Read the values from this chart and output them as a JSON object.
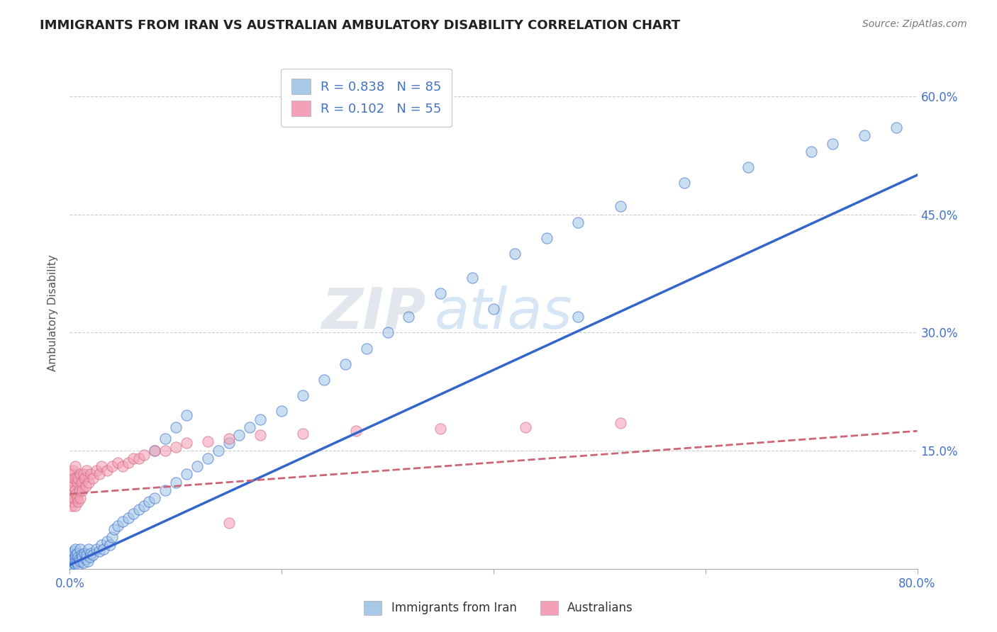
{
  "title": "IMMIGRANTS FROM IRAN VS AUSTRALIAN AMBULATORY DISABILITY CORRELATION CHART",
  "source": "Source: ZipAtlas.com",
  "ylabel": "Ambulatory Disability",
  "watermark": "ZIPatlas",
  "xlim": [
    0.0,
    0.8
  ],
  "ylim": [
    0.0,
    0.65
  ],
  "x_ticks": [
    0.0,
    0.2,
    0.4,
    0.6,
    0.8
  ],
  "x_tick_labels": [
    "0.0%",
    "",
    "",
    "",
    "80.0%"
  ],
  "y_ticks": [
    0.15,
    0.3,
    0.45,
    0.6
  ],
  "y_tick_labels": [
    "15.0%",
    "30.0%",
    "45.0%",
    "60.0%"
  ],
  "series1_color": "#a8c8e8",
  "series2_color": "#f4a0b8",
  "line1_color": "#3366cc",
  "line2_color": "#cc6677",
  "R1": 0.838,
  "N1": 85,
  "R2": 0.102,
  "N2": 55,
  "legend_label1": "Immigrants from Iran",
  "legend_label2": "Australians",
  "line1_x": [
    0.0,
    0.8
  ],
  "line1_y": [
    0.005,
    0.5
  ],
  "line2_x": [
    0.0,
    0.8
  ],
  "line2_y": [
    0.095,
    0.175
  ],
  "bg_color": "#ffffff",
  "grid_color": "#cccccc",
  "tick_color": "#4472c4",
  "title_color": "#222222",
  "s1_x": [
    0.001,
    0.001,
    0.002,
    0.002,
    0.002,
    0.003,
    0.003,
    0.003,
    0.004,
    0.004,
    0.004,
    0.005,
    0.005,
    0.005,
    0.006,
    0.006,
    0.007,
    0.007,
    0.008,
    0.008,
    0.009,
    0.01,
    0.01,
    0.011,
    0.012,
    0.013,
    0.014,
    0.015,
    0.016,
    0.017,
    0.018,
    0.019,
    0.02,
    0.022,
    0.025,
    0.028,
    0.03,
    0.032,
    0.035,
    0.038,
    0.04,
    0.042,
    0.045,
    0.05,
    0.055,
    0.06,
    0.065,
    0.07,
    0.075,
    0.08,
    0.09,
    0.1,
    0.11,
    0.12,
    0.13,
    0.14,
    0.15,
    0.16,
    0.17,
    0.18,
    0.2,
    0.22,
    0.24,
    0.26,
    0.28,
    0.3,
    0.32,
    0.35,
    0.38,
    0.42,
    0.45,
    0.48,
    0.52,
    0.58,
    0.64,
    0.7,
    0.72,
    0.75,
    0.78,
    0.08,
    0.09,
    0.1,
    0.11,
    0.4,
    0.48
  ],
  "s1_y": [
    0.008,
    0.012,
    0.006,
    0.015,
    0.02,
    0.005,
    0.01,
    0.018,
    0.008,
    0.012,
    0.022,
    0.006,
    0.015,
    0.025,
    0.01,
    0.018,
    0.008,
    0.02,
    0.005,
    0.015,
    0.012,
    0.01,
    0.025,
    0.018,
    0.015,
    0.008,
    0.02,
    0.012,
    0.018,
    0.01,
    0.025,
    0.015,
    0.02,
    0.018,
    0.025,
    0.022,
    0.03,
    0.025,
    0.035,
    0.03,
    0.04,
    0.05,
    0.055,
    0.06,
    0.065,
    0.07,
    0.075,
    0.08,
    0.085,
    0.09,
    0.1,
    0.11,
    0.12,
    0.13,
    0.14,
    0.15,
    0.16,
    0.17,
    0.18,
    0.19,
    0.2,
    0.22,
    0.24,
    0.26,
    0.28,
    0.3,
    0.32,
    0.35,
    0.37,
    0.4,
    0.42,
    0.44,
    0.46,
    0.49,
    0.51,
    0.53,
    0.54,
    0.55,
    0.56,
    0.15,
    0.165,
    0.18,
    0.195,
    0.33,
    0.32
  ],
  "s2_x": [
    0.001,
    0.001,
    0.002,
    0.002,
    0.002,
    0.003,
    0.003,
    0.003,
    0.004,
    0.004,
    0.005,
    0.005,
    0.005,
    0.006,
    0.006,
    0.007,
    0.007,
    0.008,
    0.008,
    0.009,
    0.01,
    0.01,
    0.011,
    0.012,
    0.013,
    0.014,
    0.015,
    0.016,
    0.018,
    0.02,
    0.022,
    0.025,
    0.028,
    0.03,
    0.035,
    0.04,
    0.045,
    0.05,
    0.055,
    0.06,
    0.065,
    0.07,
    0.08,
    0.09,
    0.1,
    0.11,
    0.13,
    0.15,
    0.18,
    0.22,
    0.27,
    0.35,
    0.43,
    0.52,
    0.15
  ],
  "s2_y": [
    0.09,
    0.11,
    0.08,
    0.1,
    0.12,
    0.085,
    0.105,
    0.125,
    0.09,
    0.115,
    0.08,
    0.1,
    0.13,
    0.095,
    0.115,
    0.09,
    0.11,
    0.085,
    0.115,
    0.1,
    0.09,
    0.12,
    0.11,
    0.1,
    0.12,
    0.115,
    0.105,
    0.125,
    0.11,
    0.12,
    0.115,
    0.125,
    0.12,
    0.13,
    0.125,
    0.13,
    0.135,
    0.13,
    0.135,
    0.14,
    0.14,
    0.145,
    0.15,
    0.15,
    0.155,
    0.16,
    0.162,
    0.165,
    0.17,
    0.172,
    0.175,
    0.178,
    0.18,
    0.185,
    0.058
  ]
}
